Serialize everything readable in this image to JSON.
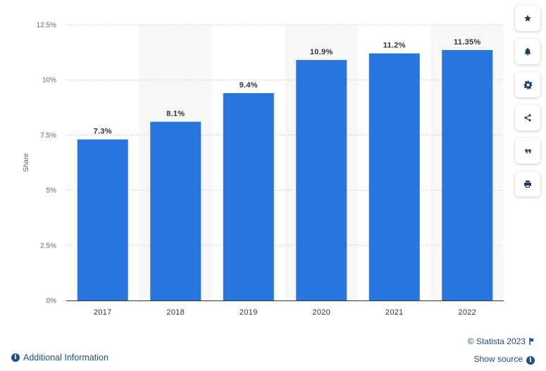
{
  "chart_data": {
    "type": "bar",
    "categories": [
      "2017",
      "2018",
      "2019",
      "2020",
      "2021",
      "2022"
    ],
    "values": [
      7.3,
      8.1,
      9.4,
      10.9,
      11.2,
      11.35
    ],
    "value_labels": [
      "7.3%",
      "8.1%",
      "9.4%",
      "10.9%",
      "11.2%",
      "11.35%"
    ],
    "title": "",
    "xlabel": "",
    "ylabel": "Share",
    "ylim": [
      0,
      12.5
    ],
    "yticks": [
      0,
      2.5,
      5,
      7.5,
      10,
      12.5
    ],
    "ytick_labels": [
      "0%",
      "2.5%",
      "5%",
      "7.5%",
      "10%",
      "12.5%"
    ],
    "grid": true,
    "bar_color": "#2876dd",
    "band_color": "#f7f7f7"
  },
  "toolbar": {
    "items": [
      {
        "name": "favorite-button",
        "icon": "star-icon"
      },
      {
        "name": "notification-button",
        "icon": "bell-icon"
      },
      {
        "name": "settings-button",
        "icon": "gear-icon"
      },
      {
        "name": "share-button",
        "icon": "share-icon"
      },
      {
        "name": "cite-button",
        "icon": "quote-icon"
      },
      {
        "name": "print-button",
        "icon": "print-icon"
      }
    ]
  },
  "footer": {
    "credit": "© Statista 2023",
    "show_source": "Show source",
    "additional_info": "Additional Information",
    "link_color": "#1f4e8c"
  }
}
